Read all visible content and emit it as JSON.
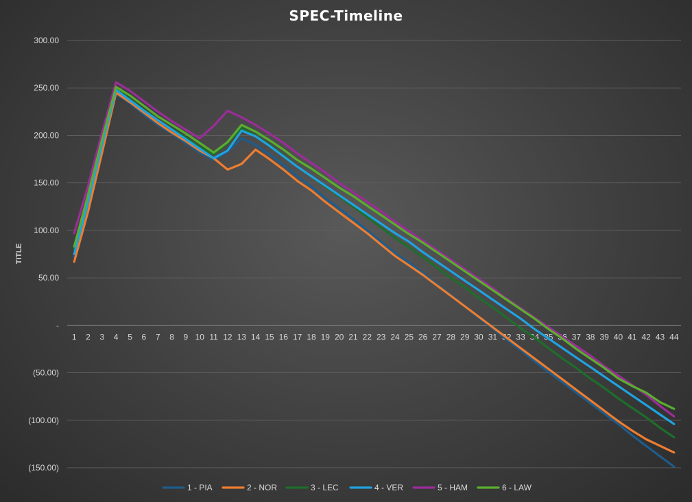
{
  "chart_data": {
    "type": "line",
    "title": "SPEC-Timeline",
    "xlabel": "",
    "ylabel": "TITLE",
    "ylim": [
      -150,
      300
    ],
    "yticks": [
      300,
      250,
      200,
      150,
      100,
      50,
      0,
      -50,
      -100,
      -150
    ],
    "ytick_labels": [
      "300.00",
      "250.00",
      "200.00",
      "150.00",
      "100.00",
      "50.00",
      "-",
      "(50.00)",
      "(100.00)",
      "(150.00)"
    ],
    "grid": true,
    "legend_position": "bottom",
    "categories": [
      "1",
      "2",
      "3",
      "4",
      "5",
      "6",
      "7",
      "8",
      "9",
      "10",
      "11",
      "12",
      "13",
      "14",
      "15",
      "16",
      "17",
      "18",
      "19",
      "20",
      "21",
      "22",
      "23",
      "24",
      "25",
      "26",
      "27",
      "28",
      "29",
      "30",
      "31",
      "32",
      "33",
      "34",
      "35",
      "36",
      "37",
      "38",
      "39",
      "40",
      "41",
      "42",
      "43",
      "44"
    ],
    "series": [
      {
        "name": "1 - PIA",
        "color": "#1f5c8b",
        "values": [
          72,
          125,
          185,
          244,
          234,
          222,
          211,
          202,
          192,
          182,
          174,
          183,
          197,
          190,
          180,
          169,
          157,
          146,
          134,
          123,
          112,
          100,
          88,
          76,
          66,
          55,
          43,
          32,
          20,
          8,
          -3,
          -15,
          -26,
          -38,
          -49,
          -60,
          -71,
          -82,
          -93,
          -104,
          -116,
          -127,
          -138,
          -149
        ]
      },
      {
        "name": "2 - NOR",
        "color": "#ed7d31",
        "values": [
          67,
          120,
          182,
          245,
          235,
          224,
          213,
          203,
          194,
          184,
          176,
          164,
          170,
          185,
          175,
          164,
          152,
          142,
          130,
          119,
          108,
          97,
          85,
          73,
          63,
          53,
          42,
          31,
          20,
          9,
          -2,
          -13,
          -24,
          -35,
          -46,
          -57,
          -68,
          -79,
          -90,
          -101,
          -111,
          -120,
          -127,
          -134
        ]
      },
      {
        "name": "3 - LEC",
        "color": "#1e6e2c",
        "values": [
          80,
          135,
          193,
          249,
          238,
          227,
          216,
          207,
          198,
          188,
          180,
          192,
          208,
          200,
          190,
          179,
          167,
          157,
          146,
          136,
          125,
          114,
          103,
          92,
          82,
          72,
          61,
          50,
          40,
          29,
          19,
          8,
          -3,
          -13,
          -24,
          -35,
          -45,
          -56,
          -66,
          -77,
          -87,
          -97,
          -108,
          -118
        ]
      },
      {
        "name": "4 - VER",
        "color": "#1fa3e0",
        "values": [
          75,
          130,
          190,
          248,
          237,
          226,
          216,
          206,
          196,
          186,
          176,
          184,
          205,
          199,
          189,
          178,
          167,
          157,
          147,
          137,
          127,
          117,
          107,
          97,
          88,
          77,
          67,
          57,
          47,
          37,
          27,
          17,
          7,
          -4,
          -14,
          -24,
          -34,
          -44,
          -54,
          -64,
          -74,
          -84,
          -94,
          -104
        ]
      },
      {
        "name": "5 - HAM",
        "color": "#9b2d99",
        "values": [
          97,
          147,
          203,
          256,
          247,
          236,
          225,
          215,
          206,
          197,
          210,
          226,
          219,
          211,
          202,
          192,
          181,
          171,
          161,
          150,
          140,
          130,
          120,
          109,
          99,
          89,
          79,
          69,
          59,
          49,
          39,
          28,
          18,
          8,
          -2,
          -12,
          -22,
          -32,
          -43,
          -53,
          -63,
          -73,
          -85,
          -96
        ]
      },
      {
        "name": "6 - LAW",
        "color": "#5aae2e",
        "values": [
          83,
          138,
          196,
          251,
          242,
          231,
          220,
          211,
          202,
          192,
          182,
          193,
          211,
          204,
          195,
          185,
          174,
          165,
          155,
          145,
          136,
          126,
          116,
          106,
          96,
          87,
          77,
          67,
          57,
          47,
          37,
          27,
          17,
          7,
          -4,
          -14,
          -25,
          -35,
          -45,
          -56,
          -64,
          -71,
          -81,
          -88
        ]
      }
    ]
  }
}
